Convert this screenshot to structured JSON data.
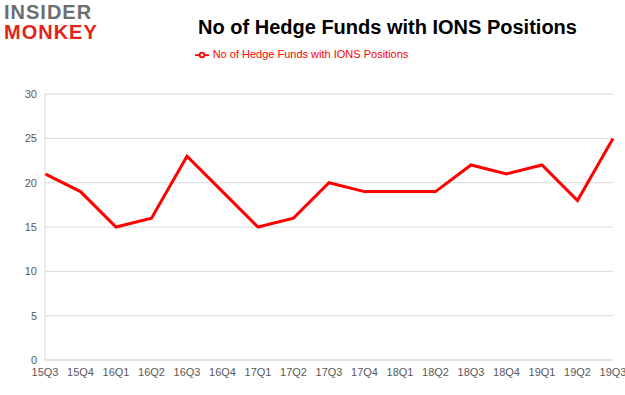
{
  "chart_data": {
    "type": "line",
    "title": "No of Hedge Funds with IONS Positions",
    "annotations": [
      "INSIDER",
      "MONKEY"
    ],
    "categories": [
      "15Q3",
      "15Q4",
      "16Q1",
      "16Q2",
      "16Q3",
      "16Q4",
      "17Q1",
      "17Q2",
      "17Q3",
      "17Q4",
      "18Q1",
      "18Q2",
      "18Q3",
      "18Q4",
      "19Q1",
      "19Q2",
      "19Q3"
    ],
    "series": [
      {
        "name": "No of Hedge Funds with IONS Positions",
        "color": "#ff0000",
        "values": [
          21,
          19,
          15,
          16,
          23,
          19,
          15,
          16,
          20,
          19,
          19,
          19,
          22,
          21,
          22,
          18,
          25
        ]
      }
    ],
    "ylim": [
      0,
      30
    ],
    "yticks": [
      0,
      5,
      10,
      15,
      20,
      25,
      30
    ],
    "grid": true,
    "legend": "top"
  }
}
